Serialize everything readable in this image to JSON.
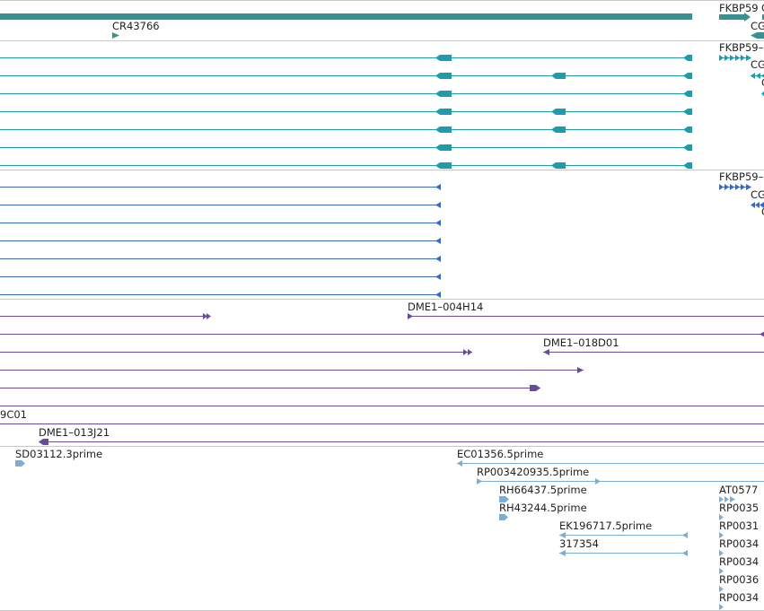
{
  "tracks": {
    "gene_models": {
      "color": "#3a8f8f",
      "labels": {
        "fkbp59": "FKBP59",
        "fkbp59_g": "G",
        "cr43766": "CR43766",
        "cg_a": "CG"
      }
    },
    "transcripts_teal": {
      "color": "#1f9bae",
      "labels": {
        "fkbp59_dash": "FKBP59–",
        "cg_b": "CG",
        "c_b": "C"
      }
    },
    "transcripts_blue": {
      "color": "#3a6bc4",
      "labels": {
        "fkbp59_dash": "FKBP59–",
        "cg_c": "CG",
        "c_c": "C"
      }
    },
    "bac_clones": {
      "color": "#6a4a9a",
      "labels": {
        "dme1_004h14": "DME1–004H14",
        "dme1_018d01": "DME1–018D01",
        "c01": "9C01",
        "dme1_013j21": "DME1–013J21"
      }
    },
    "est_reads": {
      "color": "#7aaed2",
      "labels": {
        "sd03112": "SD03112.3prime",
        "ec01356": "EC01356.5prime",
        "rp003420935": "RP003420935.5prime",
        "rh66437": "RH66437.5prime",
        "rh43244": "RH43244.5prime",
        "ek196717": "EK196717.5prime",
        "n317354": "317354",
        "at0577": "AT0577",
        "rp0035": "RP0035",
        "rp0031": "RP0031",
        "rp0034a": "RP0034",
        "rp0034b": "RP0034",
        "rp0036": "RP0036",
        "rp0034c": "RP0034"
      }
    }
  }
}
